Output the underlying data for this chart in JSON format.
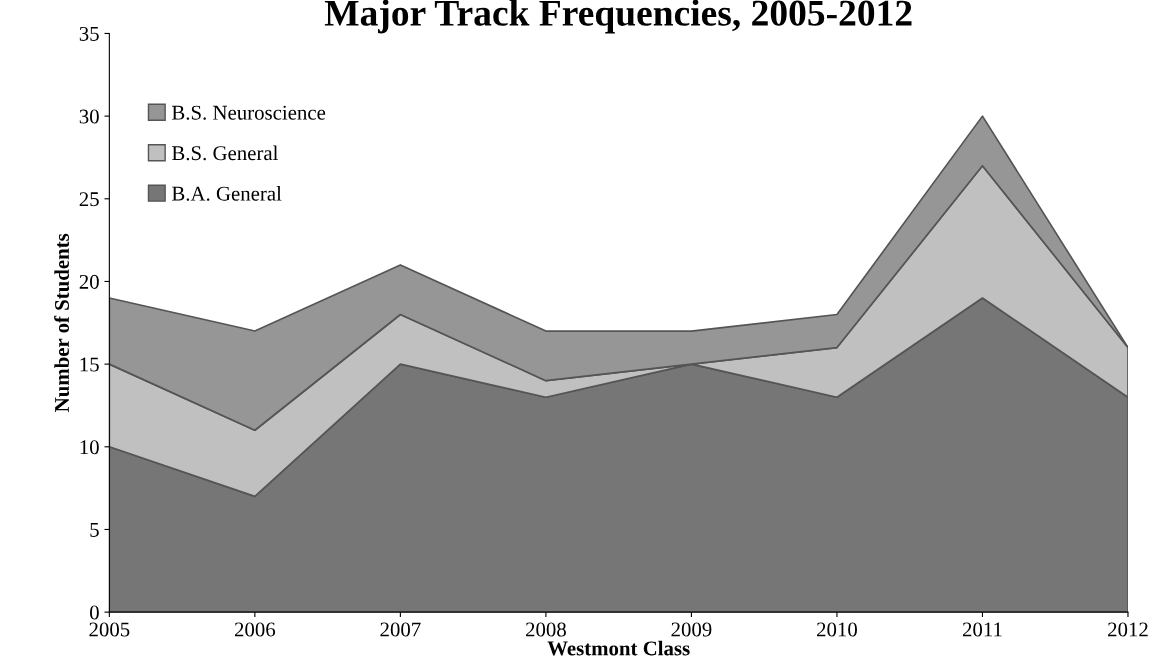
{
  "chart_data": {
    "type": "area",
    "title": "Major Track Frequencies, 2005-2012",
    "xlabel": "Westmont Class",
    "ylabel": "Number of Students",
    "categories": [
      "2005",
      "2006",
      "2007",
      "2008",
      "2009",
      "2010",
      "2011",
      "2012"
    ],
    "stacked": true,
    "series": [
      {
        "name": "B.A. General",
        "color": "#767676",
        "values": [
          10,
          7,
          15,
          13,
          15,
          13,
          19,
          13
        ]
      },
      {
        "name": "B.S. General",
        "color": "#c0c0c0",
        "values": [
          5,
          4,
          3,
          1,
          0,
          3,
          8,
          3
        ]
      },
      {
        "name": "B.S. Neuroscience",
        "color": "#969696",
        "values": [
          4,
          6,
          3,
          3,
          2,
          2,
          3,
          0
        ]
      }
    ],
    "ylim": [
      0,
      35
    ],
    "yticks": [
      0,
      5,
      10,
      15,
      20,
      25,
      30,
      35
    ],
    "grid": false,
    "legend": "top left"
  }
}
